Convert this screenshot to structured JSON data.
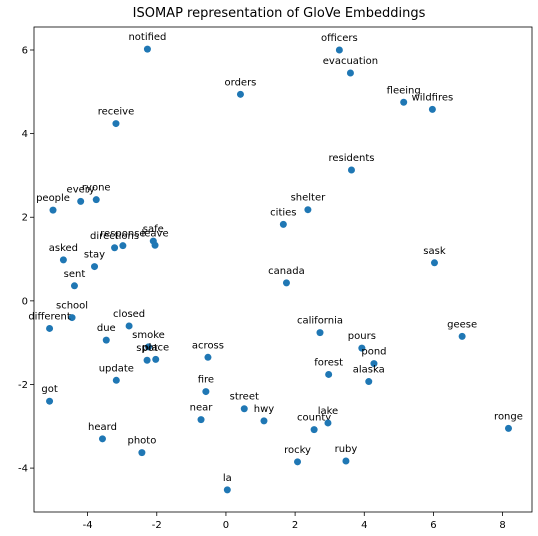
{
  "chart_data": {
    "type": "scatter",
    "title": "ISOMAP representation of GloVe Embeddings",
    "xlabel": "",
    "ylabel": "",
    "xlim": [
      -5.55,
      8.85
    ],
    "ylim": [
      -5.05,
      6.55
    ],
    "x_ticks": [
      -4,
      -2,
      0,
      2,
      4,
      6,
      8
    ],
    "y_ticks": [
      -4,
      -2,
      0,
      2,
      4,
      6
    ],
    "grid": false,
    "marker_color": "#1f77b4",
    "points": [
      {
        "label": "notified",
        "x": -2.27,
        "y": 6.02
      },
      {
        "label": "officers",
        "x": 3.28,
        "y": 6.0
      },
      {
        "label": "evacuation",
        "x": 3.6,
        "y": 5.45
      },
      {
        "label": "orders",
        "x": 0.42,
        "y": 4.94
      },
      {
        "label": "fleeing",
        "x": 5.14,
        "y": 4.75
      },
      {
        "label": "wildfires",
        "x": 5.97,
        "y": 4.58
      },
      {
        "label": "receive",
        "x": -3.18,
        "y": 4.24
      },
      {
        "label": "residents",
        "x": 3.63,
        "y": 3.13
      },
      {
        "label": "people",
        "x": -5.0,
        "y": 2.17
      },
      {
        "label": "every",
        "x": -4.2,
        "y": 2.38
      },
      {
        "label": "ryone",
        "x": -3.75,
        "y": 2.42
      },
      {
        "label": "shelter",
        "x": 2.37,
        "y": 2.18
      },
      {
        "label": "cities",
        "x": 1.66,
        "y": 1.83
      },
      {
        "label": "directions",
        "x": -3.22,
        "y": 1.27
      },
      {
        "label": "response",
        "x": -2.98,
        "y": 1.32
      },
      {
        "label": "safe",
        "x": -2.1,
        "y": 1.43
      },
      {
        "label": "leave",
        "x": -2.05,
        "y": 1.33
      },
      {
        "label": "stay",
        "x": -3.8,
        "y": 0.82
      },
      {
        "label": "asked",
        "x": -4.7,
        "y": 0.98
      },
      {
        "label": "sask",
        "x": 6.03,
        "y": 0.91
      },
      {
        "label": "canada",
        "x": 1.75,
        "y": 0.43
      },
      {
        "label": "sent",
        "x": -4.38,
        "y": 0.36
      },
      {
        "label": "school",
        "x": -4.45,
        "y": -0.4
      },
      {
        "label": "different",
        "x": -5.1,
        "y": -0.66
      },
      {
        "label": "closed",
        "x": -2.8,
        "y": -0.6
      },
      {
        "label": "due",
        "x": -3.46,
        "y": -0.94
      },
      {
        "label": "smoke",
        "x": -2.24,
        "y": -1.1
      },
      {
        "label": "california",
        "x": 2.72,
        "y": -0.76
      },
      {
        "label": "geese",
        "x": 6.83,
        "y": -0.85
      },
      {
        "label": "pours",
        "x": 3.93,
        "y": -1.13
      },
      {
        "label": "pond",
        "x": 4.28,
        "y": -1.5
      },
      {
        "label": "spot",
        "x": -2.28,
        "y": -1.42
      },
      {
        "label": "place",
        "x": -2.03,
        "y": -1.4
      },
      {
        "label": "across",
        "x": -0.52,
        "y": -1.35
      },
      {
        "label": "forest",
        "x": 2.97,
        "y": -1.76
      },
      {
        "label": "alaska",
        "x": 4.13,
        "y": -1.93
      },
      {
        "label": "update",
        "x": -3.17,
        "y": -1.9
      },
      {
        "label": "fire",
        "x": -0.58,
        "y": -2.17
      },
      {
        "label": "got",
        "x": -5.1,
        "y": -2.4
      },
      {
        "label": "street",
        "x": 0.53,
        "y": -2.58
      },
      {
        "label": "hwy",
        "x": 1.1,
        "y": -2.87
      },
      {
        "label": "near",
        "x": -0.72,
        "y": -2.84
      },
      {
        "label": "county",
        "x": 2.55,
        "y": -3.08
      },
      {
        "label": "lake",
        "x": 2.95,
        "y": -2.92
      },
      {
        "label": "ronge",
        "x": 8.17,
        "y": -3.05
      },
      {
        "label": "heard",
        "x": -3.57,
        "y": -3.3
      },
      {
        "label": "photo",
        "x": -2.43,
        "y": -3.63
      },
      {
        "label": "rocky",
        "x": 2.07,
        "y": -3.85
      },
      {
        "label": "ruby",
        "x": 3.47,
        "y": -3.83
      },
      {
        "label": "la",
        "x": 0.04,
        "y": -4.52
      }
    ]
  }
}
